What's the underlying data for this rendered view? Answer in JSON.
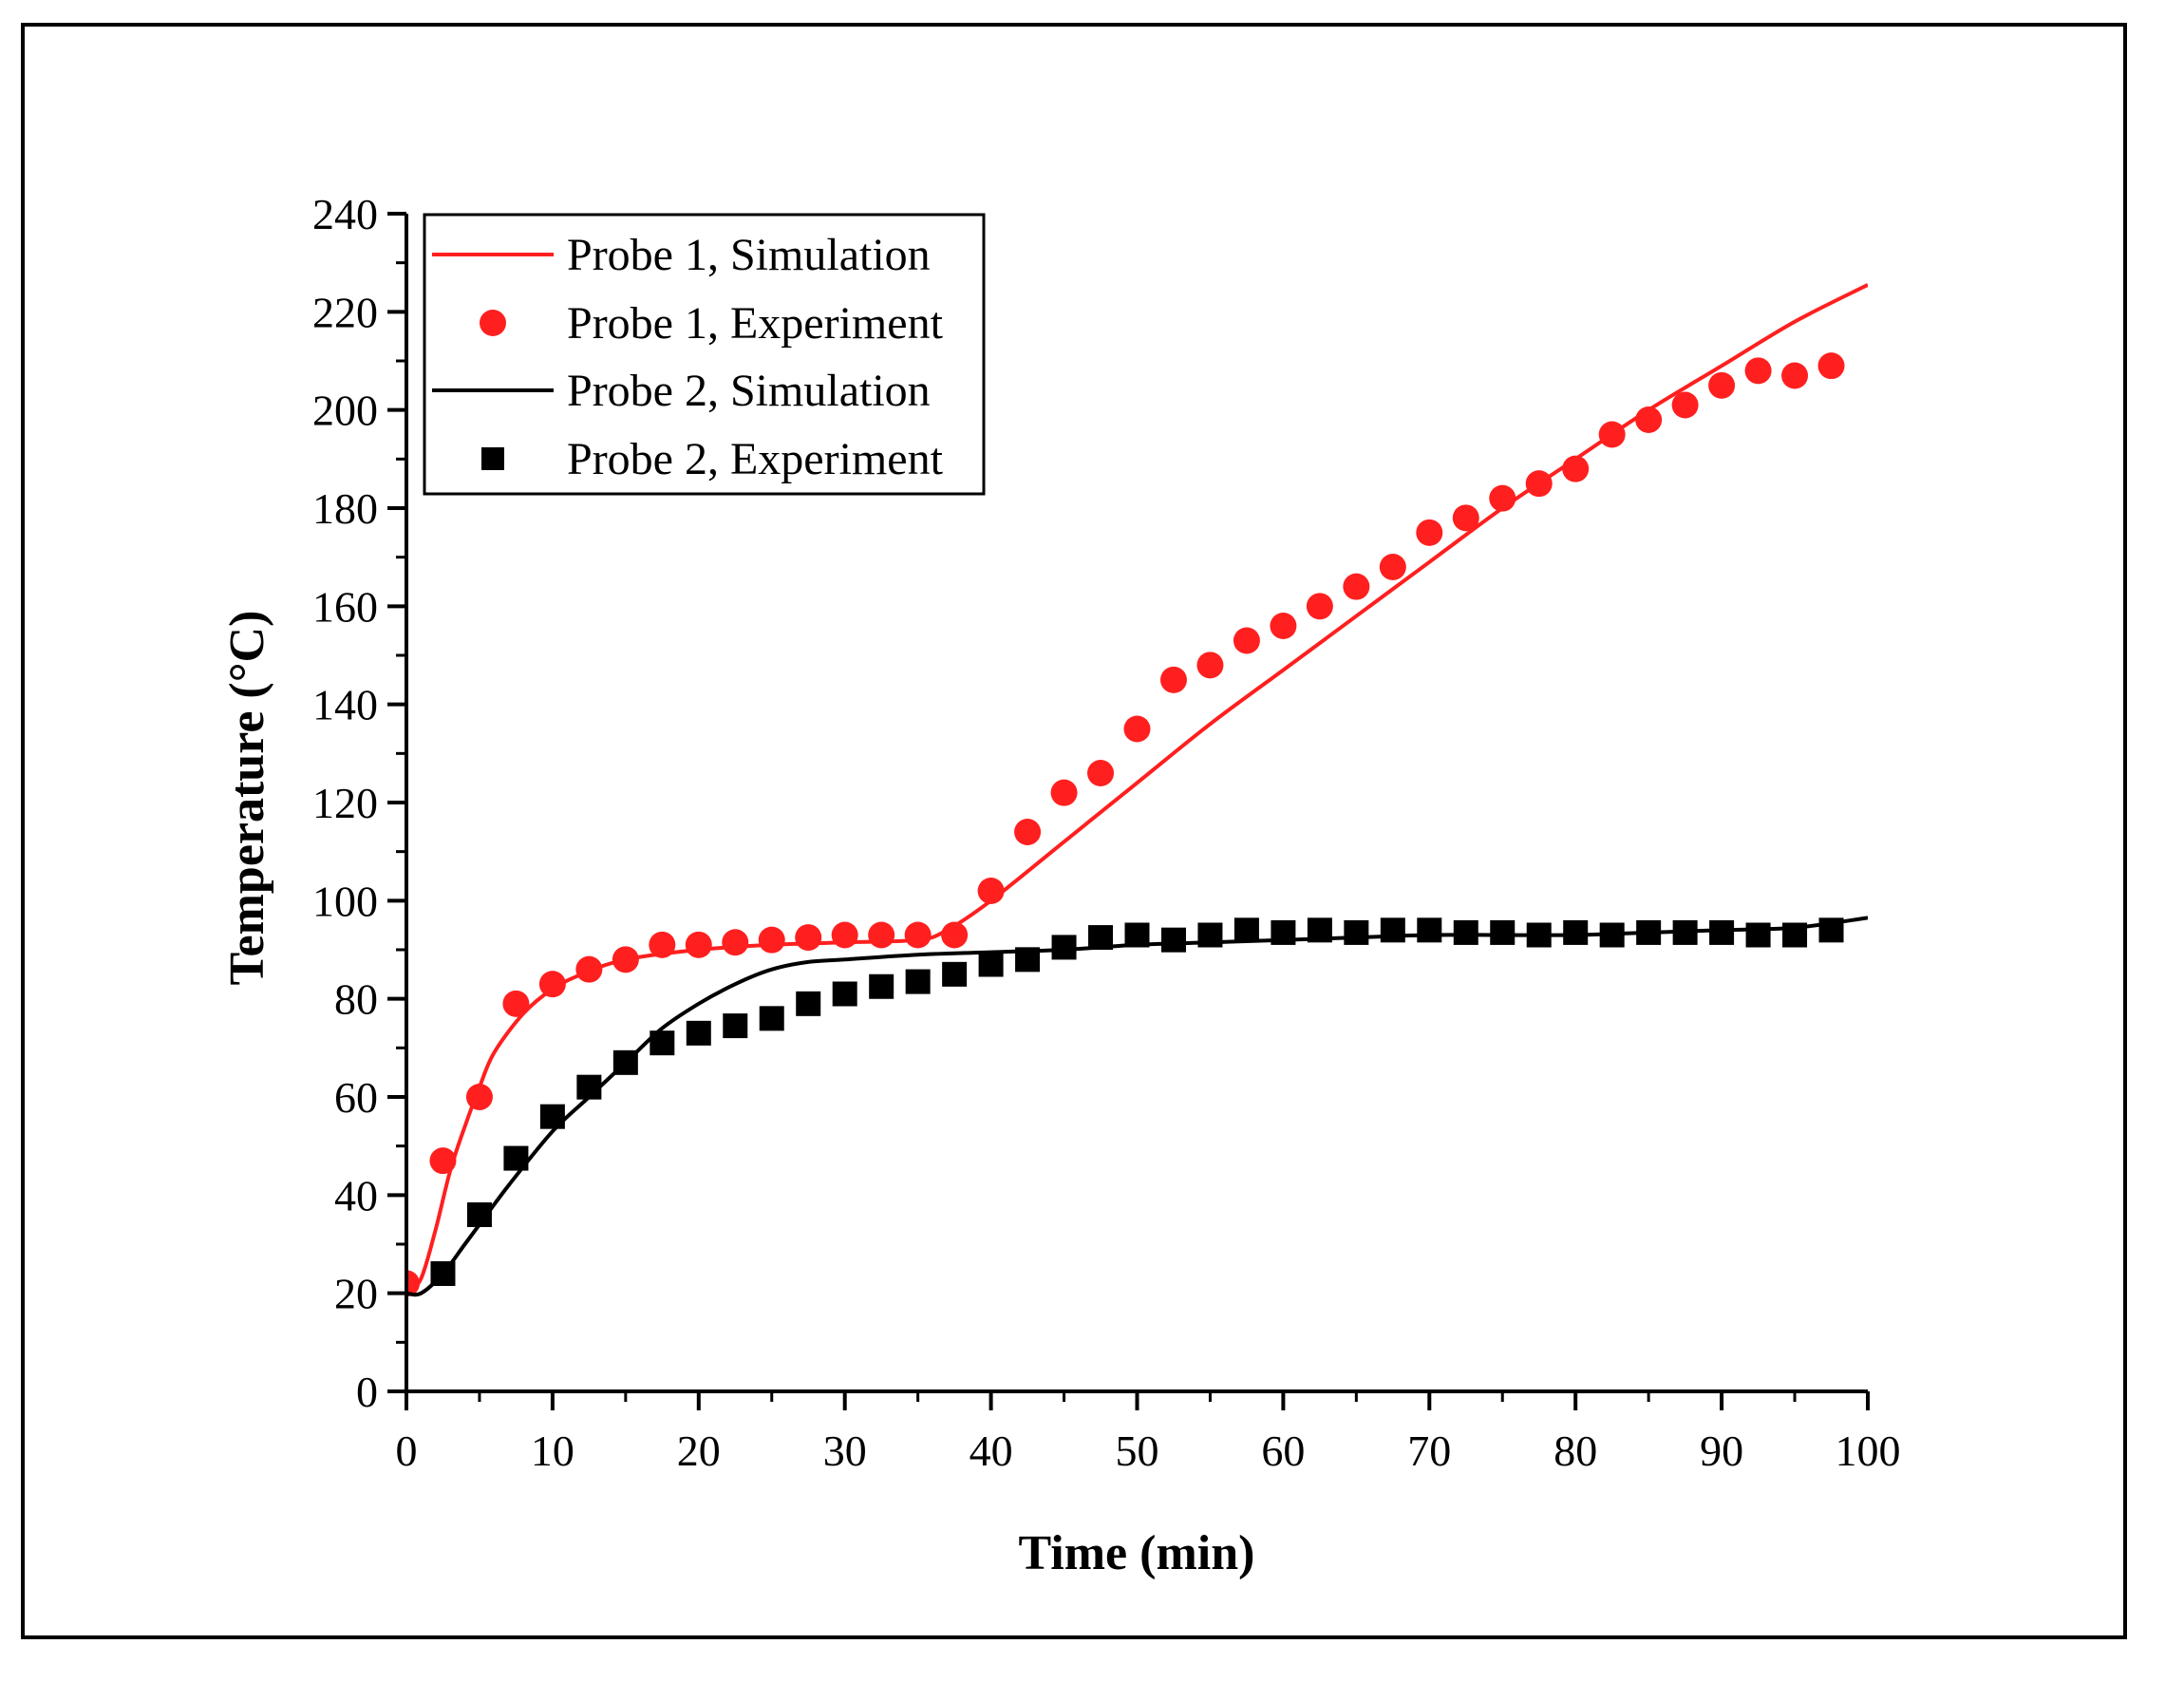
{
  "chart_data": {
    "type": "line",
    "title": "",
    "xlabel": "Time (min)",
    "ylabel": "Temperature (°C)",
    "xlim": [
      0,
      100
    ],
    "ylim": [
      0,
      240
    ],
    "xticks": [
      0,
      10,
      20,
      30,
      40,
      50,
      60,
      70,
      80,
      90,
      100
    ],
    "yticks": [
      0,
      20,
      40,
      60,
      80,
      100,
      120,
      140,
      160,
      180,
      200,
      220,
      240
    ],
    "legend_position": "top-left",
    "grid": false,
    "series": [
      {
        "name": "Probe 1, Simulation",
        "kind": "line",
        "color": "#ff1f1f",
        "x": [
          0,
          1,
          2,
          3,
          4,
          5,
          6,
          8,
          10,
          12,
          15,
          20,
          25,
          30,
          35,
          37,
          40,
          45,
          50,
          55,
          60,
          65,
          70,
          75,
          80,
          85,
          90,
          95,
          100
        ],
        "y": [
          20,
          23,
          33,
          45,
          54,
          62,
          69,
          77,
          82,
          85,
          88,
          90,
          91,
          91.5,
          92,
          94,
          100,
          112,
          124,
          136,
          147,
          158,
          169,
          180,
          190,
          200,
          209,
          218,
          225.5
        ]
      },
      {
        "name": "Probe 1, Experiment",
        "kind": "scatter",
        "marker": "circle",
        "color": "#ff1f1f",
        "x": [
          0,
          2.5,
          5,
          7.5,
          10,
          12.5,
          15,
          17.5,
          20,
          22.5,
          25,
          27.5,
          30,
          32.5,
          35,
          37.5,
          40,
          42.5,
          45,
          47.5,
          50,
          52.5,
          55,
          57.5,
          60,
          62.5,
          65,
          67.5,
          70,
          72.5,
          75,
          77.5,
          80,
          82.5,
          85,
          87.5,
          90,
          92.5,
          95,
          97.5
        ],
        "y": [
          22,
          47,
          60,
          79,
          83,
          86,
          88,
          91,
          91,
          91.5,
          92,
          92.5,
          93,
          93,
          93,
          93,
          102,
          114,
          122,
          126,
          135,
          145,
          148,
          153,
          156,
          160,
          164,
          168,
          175,
          178,
          182,
          185,
          188,
          195,
          198,
          201,
          205,
          208,
          207,
          209
        ]
      },
      {
        "name": "Probe 2, Simulation",
        "kind": "line",
        "color": "#000000",
        "x": [
          0,
          1,
          2.5,
          4,
          5,
          7,
          10,
          12.5,
          15,
          17.5,
          20,
          22.5,
          25,
          27.5,
          30,
          35,
          40,
          45,
          50,
          55,
          60,
          65,
          70,
          75,
          80,
          85,
          90,
          95,
          100
        ],
        "y": [
          20,
          20,
          24,
          30,
          34,
          42,
          53,
          60,
          67,
          74,
          79,
          83,
          86,
          87.5,
          88,
          89,
          89.5,
          90,
          91,
          91.5,
          92,
          92.5,
          93,
          93,
          93,
          93.5,
          94,
          94.5,
          96.5
        ]
      },
      {
        "name": "Probe 2, Experiment",
        "kind": "scatter",
        "marker": "square",
        "color": "#000000",
        "x": [
          2.5,
          5,
          7.5,
          10,
          12.5,
          15,
          17.5,
          20,
          22.5,
          25,
          27.5,
          30,
          32.5,
          35,
          37.5,
          40,
          42.5,
          45,
          47.5,
          50,
          52.5,
          55,
          57.5,
          60,
          62.5,
          65,
          67.5,
          70,
          72.5,
          75,
          77.5,
          80,
          82.5,
          85,
          87.5,
          90,
          92.5,
          95,
          97.5
        ],
        "y": [
          24,
          36,
          47.5,
          56,
          62,
          67,
          71,
          73,
          74.5,
          76,
          79,
          81,
          82.5,
          83.5,
          85,
          87,
          88,
          90.5,
          92.5,
          93,
          92,
          93,
          94,
          93.5,
          94,
          93.5,
          94,
          94,
          93.5,
          93.5,
          93,
          93.5,
          93,
          93.5,
          93.5,
          93.5,
          93,
          93,
          94
        ]
      }
    ]
  }
}
